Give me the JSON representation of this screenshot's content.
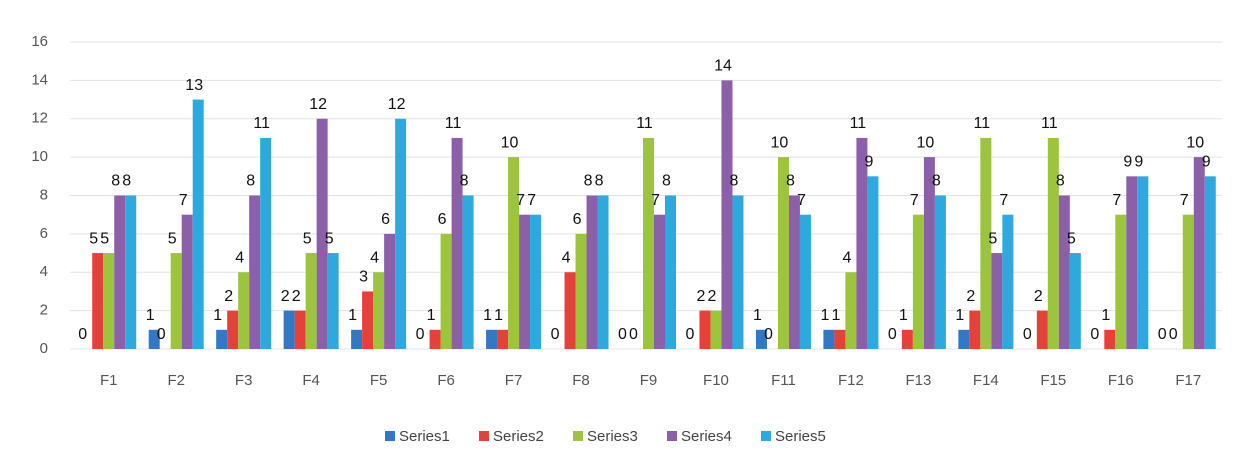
{
  "chart_data": {
    "type": "bar",
    "categories": [
      "F1",
      "F2",
      "F3",
      "F4",
      "F5",
      "F6",
      "F7",
      "F8",
      "F9",
      "F10",
      "F11",
      "F12",
      "F13",
      "F14",
      "F15",
      "F16",
      "F17"
    ],
    "series": [
      {
        "name": "Series1",
        "color": "#3378c4",
        "values": [
          0,
          1,
          1,
          2,
          1,
          0,
          1,
          0,
          0,
          0,
          1,
          1,
          0,
          1,
          0,
          0,
          0
        ]
      },
      {
        "name": "Series2",
        "color": "#e5413b",
        "values": [
          5,
          0,
          2,
          2,
          3,
          1,
          1,
          4,
          0,
          2,
          0,
          1,
          1,
          2,
          2,
          1,
          0
        ]
      },
      {
        "name": "Series3",
        "color": "#9cc43c",
        "values": [
          5,
          5,
          4,
          5,
          4,
          6,
          10,
          6,
          11,
          2,
          10,
          4,
          7,
          11,
          11,
          7,
          7
        ]
      },
      {
        "name": "Series4",
        "color": "#8c60a8",
        "values": [
          8,
          7,
          8,
          12,
          6,
          11,
          7,
          8,
          7,
          14,
          8,
          11,
          10,
          5,
          8,
          9,
          10
        ]
      },
      {
        "name": "Series5",
        "color": "#2ea9dd",
        "values": [
          8,
          13,
          11,
          5,
          12,
          8,
          7,
          8,
          8,
          8,
          7,
          9,
          8,
          7,
          5,
          9,
          9
        ]
      }
    ],
    "ylim": [
      0,
      16
    ],
    "yticks": [
      0,
      2,
      4,
      6,
      8,
      10,
      12,
      14,
      16
    ],
    "grid": true,
    "legend": "bottom"
  }
}
